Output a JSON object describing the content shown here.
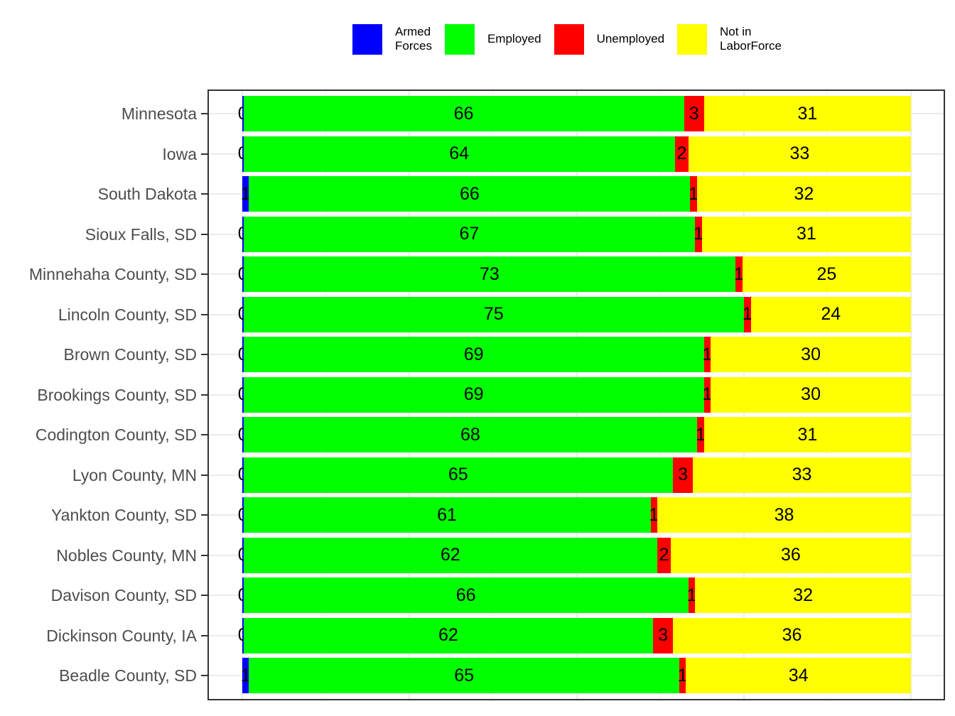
{
  "chart_data": {
    "type": "bar",
    "orientation": "horizontal",
    "stacked": true,
    "percent": true,
    "title": "",
    "xlabel": "",
    "ylabel": "",
    "xlim": [
      0,
      100
    ],
    "grid": true,
    "legend_position": "top",
    "categories": [
      "Minnesota",
      "Iowa",
      "South Dakota",
      "Sioux Falls, SD",
      "Minnehaha County, SD",
      "Lincoln County, SD",
      "Brown County, SD",
      "Brookings County, SD",
      "Codington County, SD",
      "Lyon County, MN",
      "Yankton County, SD",
      "Nobles County, MN",
      "Davison County, SD",
      "Dickinson County, IA",
      "Beadle County, SD"
    ],
    "series": [
      {
        "name": "Armed Forces",
        "color": "#0000FF",
        "values": [
          0,
          0,
          1,
          0,
          0,
          0,
          0,
          0,
          0,
          0,
          0,
          0,
          0,
          0,
          1
        ]
      },
      {
        "name": "Employed",
        "color": "#00FF00",
        "values": [
          66,
          64,
          66,
          67,
          73,
          75,
          69,
          69,
          68,
          65,
          61,
          62,
          66,
          62,
          65
        ]
      },
      {
        "name": "Unemployed",
        "color": "#FF0000",
        "values": [
          3,
          2,
          1,
          1,
          1,
          1,
          1,
          1,
          1,
          3,
          1,
          2,
          1,
          3,
          1
        ]
      },
      {
        "name": "Not in LaborForce",
        "color": "#FFFF00",
        "values": [
          31,
          33,
          32,
          31,
          25,
          24,
          30,
          30,
          31,
          33,
          38,
          36,
          32,
          36,
          34
        ]
      }
    ]
  },
  "legend": {
    "items": [
      {
        "label": "Armed\nForces",
        "color": "#0000FF"
      },
      {
        "label": "Employed",
        "color": "#00FF00"
      },
      {
        "label": "Unemployed",
        "color": "#FF0000"
      },
      {
        "label": "Not in\nLaborForce",
        "color": "#FFFF00"
      }
    ]
  }
}
